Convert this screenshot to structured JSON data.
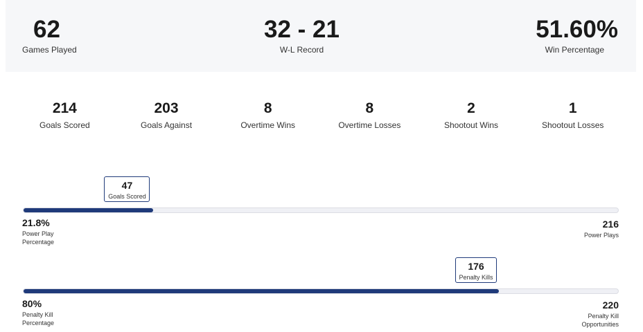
{
  "summary": [
    {
      "value": "62",
      "label": "Games Played"
    },
    {
      "value": "32 - 21",
      "label": "W-L Record"
    },
    {
      "value": "51.60%",
      "label": "Win Percentage"
    }
  ],
  "stats": [
    {
      "value": "214",
      "label": "Goals Scored"
    },
    {
      "value": "203",
      "label": "Goals Against"
    },
    {
      "value": "8",
      "label": "Overtime Wins"
    },
    {
      "value": "8",
      "label": "Overtime Losses"
    },
    {
      "value": "2",
      "label": "Shootout Wins"
    },
    {
      "value": "1",
      "label": "Shootout Losses"
    }
  ],
  "power_play": {
    "percent": "21.8%",
    "percent_label": "Power Play Percentage",
    "fill_percent": 21.8,
    "callout_value": "47",
    "callout_label": "Goals Scored",
    "total": "216",
    "total_label": "Power Plays"
  },
  "penalty_kill": {
    "percent": "80%",
    "percent_label": "Penalty Kill Percentage",
    "fill_percent": 80,
    "callout_value": "176",
    "callout_label": "Penalty Kills",
    "total": "220",
    "total_label": "Penalty Kill Opportunities"
  },
  "colors": {
    "accent": "#1f3a7a",
    "track": "#eff0f5",
    "panel": "#f6f7f9"
  }
}
